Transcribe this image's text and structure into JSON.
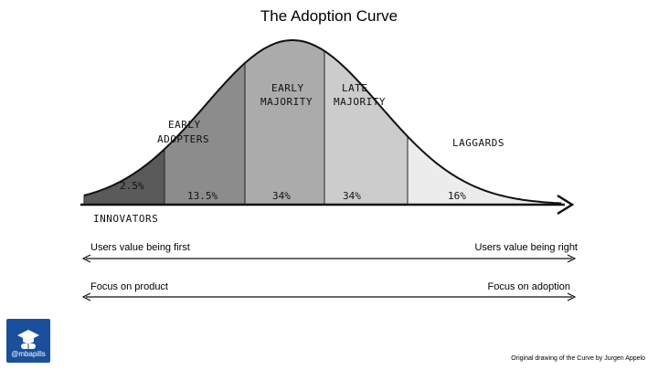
{
  "title": "The Adoption Curve",
  "segments": [
    {
      "label_lines": [
        "INNOVATORS"
      ],
      "percent": "2.5%",
      "share": 2.5,
      "fill": "#5a5a5a"
    },
    {
      "label_lines": [
        "EARLY",
        "ADOPTERS"
      ],
      "percent": "13.5%",
      "share": 13.5,
      "fill": "#8c8c8c"
    },
    {
      "label_lines": [
        "EARLY",
        "MAJORITY"
      ],
      "percent": "34%",
      "share": 34,
      "fill": "#ababab"
    },
    {
      "label_lines": [
        "LATE",
        "MAJORITY"
      ],
      "percent": "34%",
      "share": 34,
      "fill": "#cccccc"
    },
    {
      "label_lines": [
        "LAGGARDS"
      ],
      "percent": "16%",
      "share": 16,
      "fill": "#ececec"
    }
  ],
  "rows": [
    {
      "left": "Users value being first",
      "right": "Users value being right"
    },
    {
      "left": "Focus on product",
      "right": "Focus on adoption"
    }
  ],
  "logo": {
    "text": "@mbapills",
    "icon": "graduation-cap-pill-icon"
  },
  "credit": "Original drawing of the Curve by Jurgen Appelo"
}
